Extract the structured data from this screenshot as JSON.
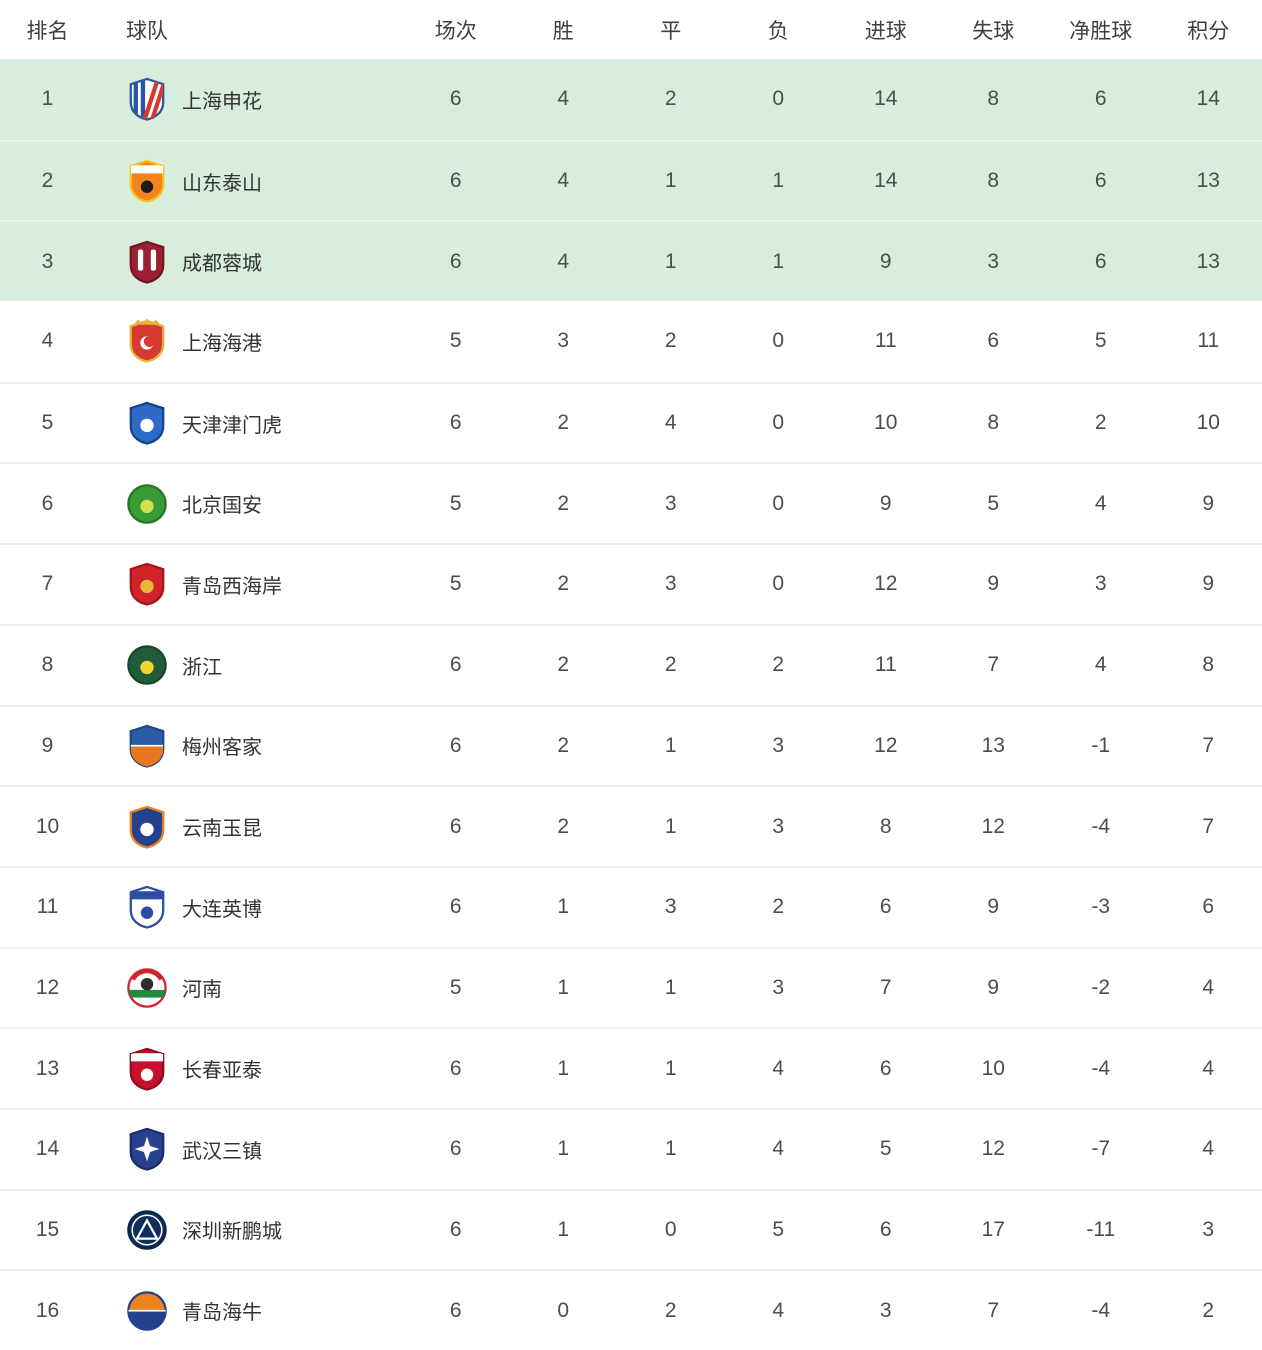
{
  "colors": {
    "highlight_row_bg": "#d8eddc",
    "highlight_divider": "#e8f4ea",
    "row_divider": "#ececec",
    "header_text": "#3f3f3f",
    "cell_text": "#4d4d4d",
    "team_text": "#333333",
    "background": "#ffffff"
  },
  "table": {
    "columns": [
      {
        "key": "rank",
        "label": "排名"
      },
      {
        "key": "team",
        "label": "球队"
      },
      {
        "key": "played",
        "label": "场次"
      },
      {
        "key": "won",
        "label": "胜"
      },
      {
        "key": "drawn",
        "label": "平"
      },
      {
        "key": "lost",
        "label": "负"
      },
      {
        "key": "goals_for",
        "label": "进球"
      },
      {
        "key": "goals_against",
        "label": "失球"
      },
      {
        "key": "goal_diff",
        "label": "净胜球"
      },
      {
        "key": "points",
        "label": "积分"
      }
    ],
    "rows": [
      {
        "rank": 1,
        "team": "上海申花",
        "played": 6,
        "won": 4,
        "drawn": 2,
        "lost": 0,
        "goals_for": 14,
        "goals_against": 8,
        "goal_diff": 6,
        "points": 14,
        "highlighted": true,
        "logo": {
          "icon": "shanghai-shenhua-crest-icon",
          "shape": "shield",
          "pattern": "stripes",
          "bg": "#ffffff",
          "stroke": "#2a56a7",
          "a": "#2a56a7",
          "b": "#d8392f"
        }
      },
      {
        "rank": 2,
        "team": "山东泰山",
        "played": 6,
        "won": 4,
        "drawn": 1,
        "lost": 1,
        "goals_for": 14,
        "goals_against": 8,
        "goal_diff": 6,
        "points": 13,
        "highlighted": true,
        "logo": {
          "icon": "shandong-taishan-crest-icon",
          "shape": "shield",
          "pattern": "bandball",
          "bg": "#f5821f",
          "stroke": "#f0c419",
          "a": "#ffffff",
          "b": "#1c1c1c"
        }
      },
      {
        "rank": 3,
        "team": "成都蓉城",
        "played": 6,
        "won": 4,
        "drawn": 1,
        "lost": 1,
        "goals_for": 9,
        "goals_against": 3,
        "goal_diff": 6,
        "points": 13,
        "highlighted": true,
        "logo": {
          "icon": "chengdu-rongcheng-crest-icon",
          "shape": "shield",
          "pattern": "slashes",
          "bg": "#9c2032",
          "stroke": "#731523",
          "a": "#ffffff",
          "b": "#ffffff"
        }
      },
      {
        "rank": 4,
        "team": "上海海港",
        "played": 5,
        "won": 3,
        "drawn": 2,
        "lost": 0,
        "goals_for": 11,
        "goals_against": 6,
        "goal_diff": 5,
        "points": 11,
        "highlighted": false,
        "logo": {
          "icon": "shanghai-port-crest-icon",
          "shape": "shield",
          "pattern": "crown",
          "bg": "#d63a30",
          "stroke": "#e8b33a",
          "a": "#e8b33a",
          "b": "#ffffff"
        }
      },
      {
        "rank": 5,
        "team": "天津津门虎",
        "played": 6,
        "won": 2,
        "drawn": 4,
        "lost": 0,
        "goals_for": 10,
        "goals_against": 8,
        "goal_diff": 2,
        "points": 10,
        "highlighted": false,
        "logo": {
          "icon": "tianjin-jinmen-tiger-crest-icon",
          "shape": "shield",
          "pattern": "ball",
          "bg": "#2f6bc4",
          "stroke": "#16418f",
          "a": "#ffffff",
          "b": "#ffffff"
        }
      },
      {
        "rank": 6,
        "team": "北京国安",
        "played": 5,
        "won": 2,
        "drawn": 3,
        "lost": 0,
        "goals_for": 9,
        "goals_against": 5,
        "goal_diff": 4,
        "points": 9,
        "highlighted": false,
        "logo": {
          "icon": "beijing-guoan-crest-icon",
          "shape": "circle",
          "pattern": "ball",
          "bg": "#3a9a35",
          "stroke": "#1f7a23",
          "a": "#cde24d",
          "b": "#ffffff"
        }
      },
      {
        "rank": 7,
        "team": "青岛西海岸",
        "played": 5,
        "won": 2,
        "drawn": 3,
        "lost": 0,
        "goals_for": 12,
        "goals_against": 9,
        "goal_diff": 3,
        "points": 9,
        "highlighted": false,
        "logo": {
          "icon": "qingdao-west-coast-crest-icon",
          "shape": "shield",
          "pattern": "ball",
          "bg": "#d2232a",
          "stroke": "#a3161d",
          "a": "#edb63c",
          "b": "#ffffff"
        }
      },
      {
        "rank": 8,
        "team": "浙江",
        "played": 6,
        "won": 2,
        "drawn": 2,
        "lost": 2,
        "goals_for": 11,
        "goals_against": 7,
        "goal_diff": 4,
        "points": 8,
        "highlighted": false,
        "logo": {
          "icon": "zhejiang-crest-icon",
          "shape": "circle",
          "pattern": "ball",
          "bg": "#205c39",
          "stroke": "#17472b",
          "a": "#f5d432",
          "b": "#ffffff"
        }
      },
      {
        "rank": 9,
        "team": "梅州客家",
        "played": 6,
        "won": 2,
        "drawn": 1,
        "lost": 3,
        "goals_for": 12,
        "goals_against": 13,
        "goal_diff": -1,
        "points": 7,
        "highlighted": false,
        "logo": {
          "icon": "meizhou-hakka-crest-icon",
          "shape": "shield",
          "pattern": "half",
          "bg": "#2a5caa",
          "stroke": "#1d4787",
          "a": "#2a5caa",
          "b": "#e87722"
        }
      },
      {
        "rank": 10,
        "team": "云南玉昆",
        "played": 6,
        "won": 2,
        "drawn": 1,
        "lost": 3,
        "goals_for": 8,
        "goals_against": 12,
        "goal_diff": -4,
        "points": 7,
        "highlighted": false,
        "logo": {
          "icon": "yunnan-yukun-crest-icon",
          "shape": "shield",
          "pattern": "ball",
          "bg": "#24418e",
          "stroke": "#ef8220",
          "a": "#ffffff",
          "b": "#ffffff"
        }
      },
      {
        "rank": 11,
        "team": "大连英博",
        "played": 6,
        "won": 1,
        "drawn": 3,
        "lost": 2,
        "goals_for": 6,
        "goals_against": 9,
        "goal_diff": -3,
        "points": 6,
        "highlighted": false,
        "logo": {
          "icon": "dalian-yingbo-crest-icon",
          "shape": "shield",
          "pattern": "bandball",
          "bg": "#ffffff",
          "stroke": "#2b4ea2",
          "a": "#2b4ea2",
          "b": "#2b4ea2"
        }
      },
      {
        "rank": 12,
        "team": "河南",
        "played": 5,
        "won": 1,
        "drawn": 1,
        "lost": 3,
        "goals_for": 7,
        "goals_against": 9,
        "goal_diff": -2,
        "points": 4,
        "highlighted": false,
        "logo": {
          "icon": "henan-crest-icon",
          "shape": "circle",
          "pattern": "henan",
          "bg": "#ffffff",
          "stroke": "#d2232a",
          "a": "#d2232a",
          "b": "#1e8c3c"
        }
      },
      {
        "rank": 13,
        "team": "长春亚泰",
        "played": 6,
        "won": 1,
        "drawn": 1,
        "lost": 4,
        "goals_for": 6,
        "goals_against": 10,
        "goal_diff": -4,
        "points": 4,
        "highlighted": false,
        "logo": {
          "icon": "changchun-yatai-crest-icon",
          "shape": "shield",
          "pattern": "bandball",
          "bg": "#c8102e",
          "stroke": "#8f0b20",
          "a": "#ffffff",
          "b": "#ffffff"
        }
      },
      {
        "rank": 14,
        "team": "武汉三镇",
        "played": 6,
        "won": 1,
        "drawn": 1,
        "lost": 4,
        "goals_for": 5,
        "goals_against": 12,
        "goal_diff": -7,
        "points": 4,
        "highlighted": false,
        "logo": {
          "icon": "wuhan-three-towns-crest-icon",
          "shape": "shield",
          "pattern": "star",
          "bg": "#27418f",
          "stroke": "#182c66",
          "a": "#ffffff",
          "b": "#ffffff"
        }
      },
      {
        "rank": 15,
        "team": "深圳新鹏城",
        "played": 6,
        "won": 1,
        "drawn": 0,
        "lost": 5,
        "goals_for": 6,
        "goals_against": 17,
        "goal_diff": -11,
        "points": 3,
        "highlighted": false,
        "logo": {
          "icon": "shenzhen-peng-city-crest-icon",
          "shape": "circle",
          "pattern": "triangle",
          "bg": "#0e2f5e",
          "stroke": "#0a2348",
          "a": "#ffffff",
          "b": "#ffffff"
        }
      },
      {
        "rank": 16,
        "team": "青岛海牛",
        "played": 6,
        "won": 0,
        "drawn": 2,
        "lost": 4,
        "goals_for": 3,
        "goals_against": 7,
        "goal_diff": -4,
        "points": 2,
        "highlighted": false,
        "logo": {
          "icon": "qingdao-hainiu-crest-icon",
          "shape": "circle",
          "pattern": "half",
          "bg": "#ef8220",
          "stroke": "#24418e",
          "a": "#ef8220",
          "b": "#24418e"
        }
      }
    ]
  }
}
